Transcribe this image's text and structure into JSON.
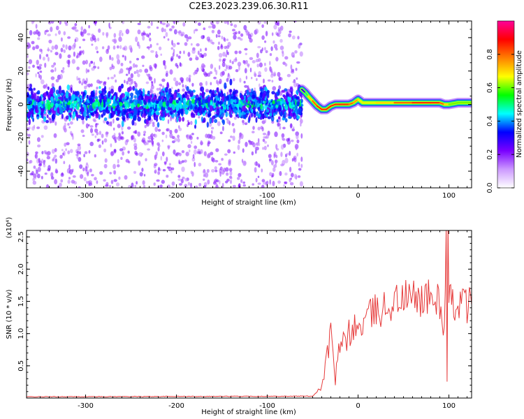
{
  "title": "C2E3.2023.239.06.30.R11",
  "chart_data": [
    {
      "type": "heatmap",
      "xlabel": "Height of straight line (km)",
      "ylabel": "Frequency (Hz)",
      "xlim": [
        -365,
        125
      ],
      "ylim": [
        -50,
        50
      ],
      "xticks": [
        -300,
        -200,
        -100,
        0,
        100
      ],
      "yticks": [
        -40,
        -20,
        0,
        20,
        40
      ],
      "colorbar": {
        "label": "Normalized spectral amplitude",
        "range": [
          0.0,
          1.0
        ],
        "ticks": [
          "0.0",
          "0.2",
          "0.4",
          "0.6",
          "0.8"
        ],
        "colors": [
          "#ffffff",
          "#cc99ff",
          "#7a00ff",
          "#0000ff",
          "#00ffff",
          "#00ff00",
          "#ffff00",
          "#ff8000",
          "#ff0000",
          "#ff0099"
        ]
      },
      "noise_region": {
        "x": [
          -365,
          -62
        ],
        "core_halfwidth_hz": 8,
        "scatter_halfwidth_hz": 50,
        "level": 0.3
      },
      "ridge": {
        "x": [
          -62,
          -58,
          -55,
          -50,
          -45,
          -40,
          -35,
          -30,
          -25,
          -20,
          -15,
          -10,
          -5,
          0,
          5,
          20,
          40,
          60,
          80,
          90,
          95,
          100,
          110,
          125
        ],
        "y": [
          9,
          7,
          5,
          2,
          -1,
          -3,
          -3,
          -1,
          0,
          0,
          0,
          0,
          1,
          3,
          1,
          1,
          1,
          1,
          1,
          1,
          0,
          0,
          1,
          1
        ],
        "amplitude": [
          0.3,
          0.5,
          0.7,
          0.8,
          0.85,
          0.85,
          0.85,
          0.85,
          0.85,
          0.85,
          0.85,
          0.8,
          0.75,
          0.65,
          0.65,
          0.7,
          0.8,
          0.85,
          0.85,
          0.8,
          0.7,
          0.6,
          0.6,
          0.6
        ]
      }
    },
    {
      "type": "line",
      "xlabel": "Height of straight line (km)",
      "ylabel": "SNR (10 * v/v)",
      "y_multiplier": "(x10⁴)",
      "xlim": [
        -365,
        125
      ],
      "ylim": [
        0,
        2.6
      ],
      "xticks": [
        -300,
        -200,
        -100,
        0,
        100
      ],
      "yticks": [
        "0.5",
        "1.0",
        "1.5",
        "2.0",
        "2.5"
      ],
      "series": [
        {
          "color": "#e63a3a",
          "x": [
            -365,
            -50,
            -45,
            -40,
            -35,
            -30,
            -25,
            -20,
            -15,
            -10,
            -5,
            0,
            10,
            20,
            30,
            40,
            50,
            60,
            70,
            80,
            90,
            95,
            97,
            98,
            99,
            100,
            101,
            103,
            110,
            120,
            125
          ],
          "y": [
            0.02,
            0.03,
            0.1,
            0.2,
            0.6,
            1.0,
            0.3,
            0.8,
            0.85,
            1.0,
            1.1,
            1.05,
            1.25,
            1.35,
            1.4,
            1.5,
            1.55,
            1.55,
            1.55,
            1.55,
            1.5,
            1.0,
            2.55,
            0.2,
            2.5,
            1.4,
            1.5,
            1.45,
            1.5,
            1.45,
            1.45
          ]
        }
      ]
    }
  ]
}
